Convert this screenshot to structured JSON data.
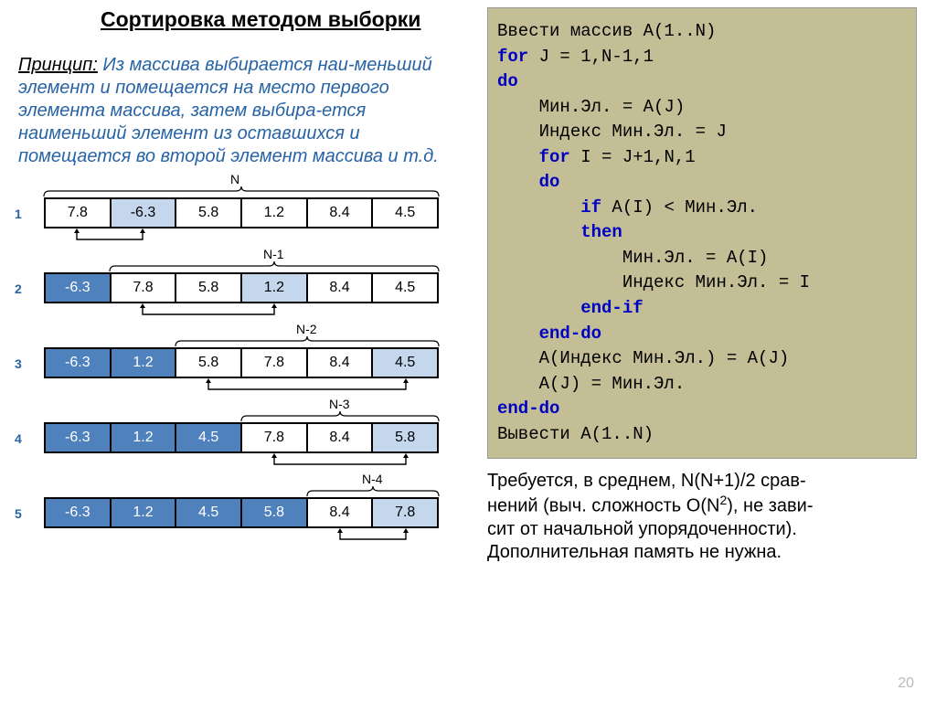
{
  "title": "Сортировка методом выборки",
  "principle_label": "Принцип:",
  "principle_text": " Из массива выбирается наи-меньший элемент и помещается на место первого элемента массива, затем выбира-ется наименьший элемент из оставшихся и помещается во второй элемент массива и т.д.",
  "arrays": {
    "labels": [
      "N",
      "N-1",
      "N-2",
      "N-3",
      "N-4"
    ],
    "row_numbers": [
      "1",
      "2",
      "3",
      "4",
      "5"
    ],
    "rows": [
      {
        "brace_start": 0,
        "brace_end": 6,
        "cells": [
          {
            "v": "7.8",
            "sorted": false,
            "sel": false
          },
          {
            "v": "-6.3",
            "sorted": false,
            "sel": true
          },
          {
            "v": "5.8",
            "sorted": false,
            "sel": false
          },
          {
            "v": "1.2",
            "sorted": false,
            "sel": false
          },
          {
            "v": "8.4",
            "sorted": false,
            "sel": false
          },
          {
            "v": "4.5",
            "sorted": false,
            "sel": false
          }
        ],
        "swap_from": 0,
        "swap_to": 1
      },
      {
        "brace_start": 1,
        "brace_end": 6,
        "cells": [
          {
            "v": "-6.3",
            "sorted": true,
            "sel": false
          },
          {
            "v": "7.8",
            "sorted": false,
            "sel": false
          },
          {
            "v": "5.8",
            "sorted": false,
            "sel": false
          },
          {
            "v": "1.2",
            "sorted": false,
            "sel": true
          },
          {
            "v": "8.4",
            "sorted": false,
            "sel": false
          },
          {
            "v": "4.5",
            "sorted": false,
            "sel": false
          }
        ],
        "swap_from": 1,
        "swap_to": 3
      },
      {
        "brace_start": 2,
        "brace_end": 6,
        "cells": [
          {
            "v": "-6.3",
            "sorted": true,
            "sel": false
          },
          {
            "v": "1.2",
            "sorted": true,
            "sel": false
          },
          {
            "v": "5.8",
            "sorted": false,
            "sel": false
          },
          {
            "v": "7.8",
            "sorted": false,
            "sel": false
          },
          {
            "v": "8.4",
            "sorted": false,
            "sel": false
          },
          {
            "v": "4.5",
            "sorted": false,
            "sel": true
          }
        ],
        "swap_from": 2,
        "swap_to": 5
      },
      {
        "brace_start": 3,
        "brace_end": 6,
        "cells": [
          {
            "v": "-6.3",
            "sorted": true,
            "sel": false
          },
          {
            "v": "1.2",
            "sorted": true,
            "sel": false
          },
          {
            "v": "4.5",
            "sorted": true,
            "sel": false
          },
          {
            "v": "7.8",
            "sorted": false,
            "sel": false
          },
          {
            "v": "8.4",
            "sorted": false,
            "sel": false
          },
          {
            "v": "5.8",
            "sorted": false,
            "sel": true
          }
        ],
        "swap_from": 3,
        "swap_to": 5
      },
      {
        "brace_start": 4,
        "brace_end": 6,
        "cells": [
          {
            "v": "-6.3",
            "sorted": true,
            "sel": false
          },
          {
            "v": "1.2",
            "sorted": true,
            "sel": false
          },
          {
            "v": "4.5",
            "sorted": true,
            "sel": false
          },
          {
            "v": "5.8",
            "sorted": true,
            "sel": false
          },
          {
            "v": "8.4",
            "sorted": false,
            "sel": false
          },
          {
            "v": "7.8",
            "sorted": false,
            "sel": true
          }
        ],
        "swap_from": 4,
        "swap_to": 5
      }
    ],
    "colors": {
      "sorted_bg": "#4f81bd",
      "selected_bg": "#c4d7ed",
      "default_bg": "#ffffff",
      "border": "#000000"
    }
  },
  "code": {
    "bg": "#c3be96",
    "keyword_color": "#0000c0",
    "lines": [
      {
        "t": "Ввести массив A(1..N)"
      },
      {
        "t": "for J = 1,N-1,1",
        "kw": [
          "for"
        ]
      },
      {
        "t": "do",
        "kw": [
          "do"
        ]
      },
      {
        "t": "    Мин.Эл. = A(J)"
      },
      {
        "t": "    Индекс Мин.Эл. = J"
      },
      {
        "t": "    for I = J+1,N,1",
        "kw": [
          "for"
        ]
      },
      {
        "t": "    do",
        "kw": [
          "do"
        ]
      },
      {
        "t": "        if A(I) < Мин.Эл.",
        "kw": [
          "if"
        ]
      },
      {
        "t": "        then",
        "kw": [
          "then"
        ]
      },
      {
        "t": "            Мин.Эл. = A(I)"
      },
      {
        "t": "            Индекс Мин.Эл. = I"
      },
      {
        "t": "        end-if",
        "kw": [
          "end-if"
        ]
      },
      {
        "t": "    end-do",
        "kw": [
          "end-do"
        ]
      },
      {
        "t": "    A(Индекс Мин.Эл.) = A(J)"
      },
      {
        "t": "    A(J) = Мин.Эл."
      },
      {
        "t": "end-do",
        "kw": [
          "end-do"
        ]
      },
      {
        "t": "Вывести A(1..N)"
      }
    ]
  },
  "bottom_text": {
    "line1": "Требуется, в среднем, N(N+1)/2 срав-",
    "line2a": "нений (выч. сложность O(N",
    "line2sup": "2",
    "line2b": "), не зави-",
    "line3": "сит от начальной упорядоченности).",
    "line4": "Дополнительная память не нужна."
  },
  "page_number": "20"
}
